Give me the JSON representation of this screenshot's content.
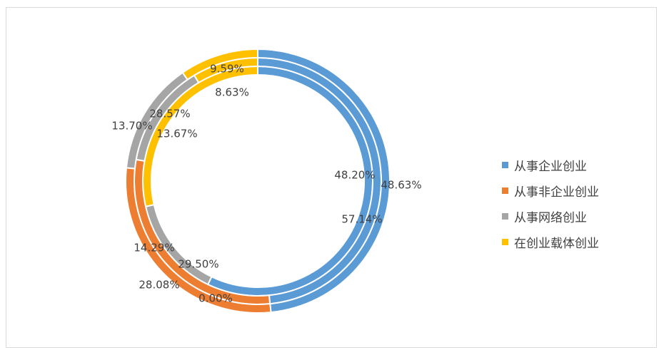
{
  "chart_data": {
    "type": "pie",
    "style": "doughnut",
    "categories": [
      "从事企业创业",
      "从事非企业创业",
      "从事网络创业",
      "在创业载体创业"
    ],
    "colors": [
      "#5B9BD5",
      "#ED7D31",
      "#A5A5A5",
      "#FFC000"
    ],
    "series": [
      {
        "values": [
          "57.14%",
          "0.00%",
          "14.29%",
          "28.57%"
        ]
      },
      {
        "values": [
          "48.63%",
          "29.50%",
          "13.67%",
          "8.63%"
        ]
      },
      {
        "values": [
          "48.20%",
          "28.08%",
          "13.70%",
          "9.59%"
        ]
      }
    ],
    "legend_position": "right"
  }
}
